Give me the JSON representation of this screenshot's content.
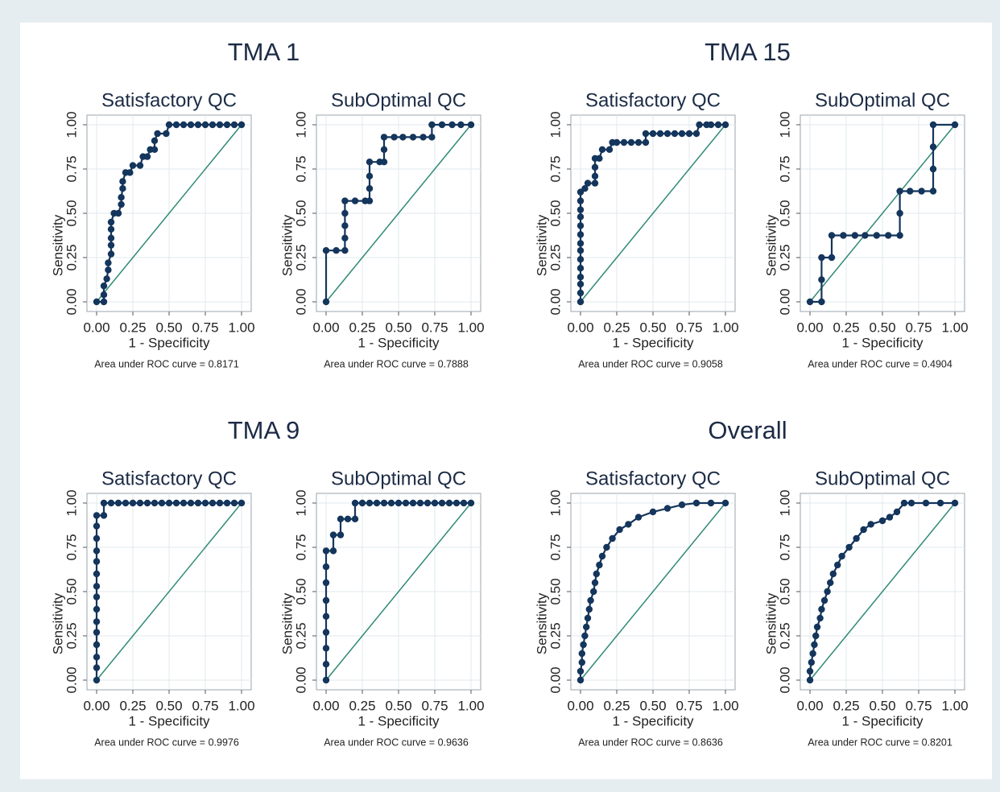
{
  "group_titles": [
    "TMA 1",
    "TMA 15",
    "TMA 9",
    "Overall"
  ],
  "chart_data": [
    {
      "type": "line",
      "title": "Satisfactory QC",
      "xlabel": "1 - Specificity",
      "ylabel": "Sensitivity",
      "note": "Area under ROC curve = 0.8171",
      "x": [
        0,
        0.05,
        0.05,
        0.05,
        0.07,
        0.08,
        0.08,
        0.1,
        0.1,
        0.1,
        0.1,
        0.1,
        0.12,
        0.15,
        0.17,
        0.17,
        0.18,
        0.18,
        0.2,
        0.23,
        0.25,
        0.3,
        0.32,
        0.35,
        0.37,
        0.4,
        0.4,
        0.42,
        0.48,
        0.5,
        0.55,
        0.6,
        0.65,
        0.7,
        0.75,
        0.8,
        0.85,
        0.9,
        0.95,
        1
      ],
      "values": [
        0,
        0,
        0.04,
        0.09,
        0.13,
        0.18,
        0.22,
        0.27,
        0.32,
        0.36,
        0.41,
        0.45,
        0.5,
        0.5,
        0.55,
        0.59,
        0.64,
        0.68,
        0.73,
        0.73,
        0.77,
        0.77,
        0.82,
        0.82,
        0.86,
        0.86,
        0.91,
        0.95,
        0.95,
        1,
        1,
        1,
        1,
        1,
        1,
        1,
        1,
        1,
        1,
        1
      ],
      "color": "#14355c",
      "reference_line": {
        "x": [
          0,
          1
        ],
        "y": [
          0,
          1
        ],
        "color": "#2f8a76"
      },
      "xlim": [
        0,
        1
      ],
      "ylim": [
        0,
        1
      ],
      "grid": true,
      "xticks": [
        {
          "value": 0,
          "label": "0.00"
        },
        0.25,
        {
          "value": 0.5,
          "label": "0.50"
        },
        0.75,
        {
          "value": 1,
          "label": "1.00"
        }
      ],
      "yticks": [
        {
          "value": 0,
          "label": "0.00"
        },
        0.25,
        {
          "value": 0.5,
          "label": "0.50"
        },
        0.75,
        {
          "value": 1,
          "label": "1.00"
        }
      ]
    },
    {
      "type": "line",
      "title": "SubOptimal QC",
      "xlabel": "1 - Specificity",
      "ylabel": "Sensitivity",
      "note": "Area under ROC curve = 0.7888",
      "x": [
        0,
        0,
        0.07,
        0.13,
        0.13,
        0.13,
        0.13,
        0.13,
        0.2,
        0.27,
        0.3,
        0.3,
        0.3,
        0.3,
        0.37,
        0.4,
        0.4,
        0.4,
        0.47,
        0.53,
        0.6,
        0.67,
        0.73,
        0.73,
        0.8,
        0.87,
        0.93,
        1
      ],
      "values": [
        0,
        0.29,
        0.29,
        0.29,
        0.36,
        0.43,
        0.5,
        0.57,
        0.57,
        0.57,
        0.57,
        0.64,
        0.71,
        0.79,
        0.79,
        0.79,
        0.86,
        0.93,
        0.93,
        0.93,
        0.93,
        0.93,
        0.93,
        1,
        1,
        1,
        1,
        1
      ],
      "color": "#14355c",
      "reference_line": {
        "x": [
          0,
          1
        ],
        "y": [
          0,
          1
        ],
        "color": "#2f8a76"
      },
      "xlim": [
        0,
        1
      ],
      "ylim": [
        0,
        1
      ],
      "grid": true,
      "xticks": [
        {
          "value": 0,
          "label": "0.00"
        },
        0.25,
        {
          "value": 0.5,
          "label": "0.50"
        },
        0.75,
        {
          "value": 1,
          "label": "1.00"
        }
      ],
      "yticks": [
        {
          "value": 0,
          "label": "0.00"
        },
        0.25,
        {
          "value": 0.5,
          "label": "0.50"
        },
        0.75,
        {
          "value": 1,
          "label": "1.00"
        }
      ]
    },
    {
      "type": "line",
      "title": "Satisfactory QC",
      "xlabel": "1 - Specificity",
      "ylabel": "Sensitivity",
      "note": "Area under ROC curve = 0.9058",
      "x": [
        0,
        0,
        0,
        0,
        0,
        0,
        0,
        0,
        0,
        0,
        0,
        0,
        0,
        0,
        0.03,
        0.05,
        0.1,
        0.1,
        0.1,
        0.1,
        0.13,
        0.15,
        0.2,
        0.22,
        0.25,
        0.3,
        0.35,
        0.4,
        0.45,
        0.45,
        0.5,
        0.55,
        0.6,
        0.65,
        0.7,
        0.75,
        0.8,
        0.82,
        0.87,
        0.9,
        0.95,
        1
      ],
      "values": [
        0,
        0.05,
        0.1,
        0.14,
        0.19,
        0.24,
        0.29,
        0.33,
        0.38,
        0.43,
        0.48,
        0.52,
        0.57,
        0.62,
        0.64,
        0.67,
        0.67,
        0.71,
        0.76,
        0.81,
        0.81,
        0.86,
        0.86,
        0.9,
        0.9,
        0.9,
        0.9,
        0.9,
        0.9,
        0.95,
        0.95,
        0.95,
        0.95,
        0.95,
        0.95,
        0.95,
        0.95,
        1,
        1,
        1,
        1,
        1
      ],
      "color": "#14355c",
      "reference_line": {
        "x": [
          0,
          1
        ],
        "y": [
          0,
          1
        ],
        "color": "#2f8a76"
      },
      "xlim": [
        0,
        1
      ],
      "ylim": [
        0,
        1
      ],
      "grid": true,
      "xticks": [
        {
          "value": 0,
          "label": "0.00"
        },
        0.25,
        {
          "value": 0.5,
          "label": "0.50"
        },
        0.75,
        {
          "value": 1,
          "label": "1.00"
        }
      ],
      "yticks": [
        {
          "value": 0,
          "label": "0.00"
        },
        0.25,
        {
          "value": 0.5,
          "label": "0.50"
        },
        0.75,
        {
          "value": 1,
          "label": "1.00"
        }
      ]
    },
    {
      "type": "line",
      "title": "SubOptimal QC",
      "xlabel": "1 - Specificity",
      "ylabel": "Sensitivity",
      "note": "Area under ROC curve = 0.4904",
      "x": [
        0,
        0.08,
        0.08,
        0.08,
        0.15,
        0.15,
        0.23,
        0.31,
        0.38,
        0.46,
        0.54,
        0.62,
        0.62,
        0.62,
        0.69,
        0.77,
        0.85,
        0.85,
        0.85,
        0.85,
        1
      ],
      "values": [
        0,
        0,
        0.125,
        0.25,
        0.25,
        0.375,
        0.375,
        0.375,
        0.375,
        0.375,
        0.375,
        0.375,
        0.5,
        0.625,
        0.625,
        0.625,
        0.625,
        0.75,
        0.875,
        1,
        1
      ],
      "color": "#14355c",
      "reference_line": {
        "x": [
          0,
          1
        ],
        "y": [
          0,
          1
        ],
        "color": "#2f8a76"
      },
      "xlim": [
        0,
        1
      ],
      "ylim": [
        0,
        1
      ],
      "grid": true,
      "xticks": [
        {
          "value": 0,
          "label": "0.00"
        },
        0.25,
        {
          "value": 0.5,
          "label": "0.50"
        },
        0.75,
        {
          "value": 1,
          "label": "1.00"
        }
      ],
      "yticks": [
        {
          "value": 0,
          "label": "0.00"
        },
        0.25,
        {
          "value": 0.5,
          "label": "0.50"
        },
        0.75,
        {
          "value": 1,
          "label": "1.00"
        }
      ]
    },
    {
      "type": "line",
      "title": "Satisfactory QC",
      "xlabel": "1 - Specificity",
      "ylabel": "Sensitivity",
      "note": "Area under ROC curve = 0.9976",
      "x": [
        0,
        0,
        0,
        0,
        0,
        0,
        0,
        0,
        0,
        0,
        0,
        0,
        0,
        0,
        0,
        0.05,
        0.05,
        0.1,
        0.15,
        0.2,
        0.25,
        0.3,
        0.35,
        0.4,
        0.45,
        0.5,
        0.55,
        0.6,
        0.65,
        0.7,
        0.75,
        0.8,
        0.85,
        0.9,
        0.95,
        1
      ],
      "values": [
        0,
        0.07,
        0.13,
        0.2,
        0.27,
        0.33,
        0.4,
        0.47,
        0.53,
        0.6,
        0.67,
        0.73,
        0.8,
        0.87,
        0.93,
        0.93,
        1,
        1,
        1,
        1,
        1,
        1,
        1,
        1,
        1,
        1,
        1,
        1,
        1,
        1,
        1,
        1,
        1,
        1,
        1,
        1
      ],
      "color": "#14355c",
      "reference_line": {
        "x": [
          0,
          1
        ],
        "y": [
          0,
          1
        ],
        "color": "#2f8a76"
      },
      "xlim": [
        0,
        1
      ],
      "ylim": [
        0,
        1
      ],
      "grid": true,
      "xticks": [
        {
          "value": 0,
          "label": "0.00"
        },
        0.25,
        {
          "value": 0.5,
          "label": "0.50"
        },
        0.75,
        {
          "value": 1,
          "label": "1.00"
        }
      ],
      "yticks": [
        {
          "value": 0,
          "label": "0.00"
        },
        0.25,
        {
          "value": 0.5,
          "label": "0.50"
        },
        0.75,
        {
          "value": 1,
          "label": "1.00"
        }
      ]
    },
    {
      "type": "line",
      "title": "SubOptimal QC",
      "xlabel": "1 - Specificity",
      "ylabel": "Sensitivity",
      "note": "Area under ROC curve = 0.9636",
      "x": [
        0,
        0,
        0,
        0,
        0,
        0,
        0,
        0,
        0,
        0.05,
        0.05,
        0.1,
        0.1,
        0.15,
        0.2,
        0.2,
        0.25,
        0.3,
        0.35,
        0.4,
        0.45,
        0.5,
        0.55,
        0.6,
        0.65,
        0.7,
        0.75,
        0.8,
        0.85,
        0.9,
        0.95,
        1
      ],
      "values": [
        0,
        0.09,
        0.18,
        0.27,
        0.36,
        0.45,
        0.55,
        0.64,
        0.73,
        0.73,
        0.82,
        0.82,
        0.91,
        0.91,
        0.91,
        1,
        1,
        1,
        1,
        1,
        1,
        1,
        1,
        1,
        1,
        1,
        1,
        1,
        1,
        1,
        1,
        1
      ],
      "color": "#14355c",
      "reference_line": {
        "x": [
          0,
          1
        ],
        "y": [
          0,
          1
        ],
        "color": "#2f8a76"
      },
      "xlim": [
        0,
        1
      ],
      "ylim": [
        0,
        1
      ],
      "grid": true,
      "xticks": [
        {
          "value": 0,
          "label": "0.00"
        },
        0.25,
        {
          "value": 0.5,
          "label": "0.50"
        },
        0.75,
        {
          "value": 1,
          "label": "1.00"
        }
      ],
      "yticks": [
        {
          "value": 0,
          "label": "0.00"
        },
        0.25,
        {
          "value": 0.5,
          "label": "0.50"
        },
        0.75,
        {
          "value": 1,
          "label": "1.00"
        }
      ]
    },
    {
      "type": "line",
      "title": "Satisfactory QC",
      "xlabel": "1 - Specificity",
      "ylabel": "Sensitivity",
      "note": "Area under ROC curve = 0.8636",
      "x": [
        0,
        0,
        0.01,
        0.01,
        0.02,
        0.03,
        0.04,
        0.05,
        0.06,
        0.07,
        0.09,
        0.1,
        0.11,
        0.13,
        0.15,
        0.18,
        0.22,
        0.27,
        0.33,
        0.4,
        0.5,
        0.6,
        0.7,
        0.8,
        0.9,
        1
      ],
      "values": [
        0,
        0.05,
        0.1,
        0.15,
        0.2,
        0.25,
        0.3,
        0.35,
        0.4,
        0.45,
        0.5,
        0.55,
        0.6,
        0.65,
        0.7,
        0.75,
        0.8,
        0.85,
        0.88,
        0.92,
        0.95,
        0.97,
        0.99,
        1,
        1,
        1
      ],
      "color": "#14355c",
      "reference_line": {
        "x": [
          0,
          1
        ],
        "y": [
          0,
          1
        ],
        "color": "#2f8a76"
      },
      "xlim": [
        0,
        1
      ],
      "ylim": [
        0,
        1
      ],
      "grid": true,
      "xticks": [
        {
          "value": 0,
          "label": "0.00"
        },
        0.25,
        {
          "value": 0.5,
          "label": "0.50"
        },
        0.75,
        {
          "value": 1,
          "label": "1.00"
        }
      ],
      "yticks": [
        {
          "value": 0,
          "label": "0.00"
        },
        0.25,
        {
          "value": 0.5,
          "label": "0.50"
        },
        0.75,
        {
          "value": 1,
          "label": "1.00"
        }
      ]
    },
    {
      "type": "line",
      "title": "SubOptimal QC",
      "xlabel": "1 - Specificity",
      "ylabel": "Sensitivity",
      "note": "Area under ROC curve = 0.8201",
      "x": [
        0,
        0,
        0.01,
        0.02,
        0.03,
        0.04,
        0.05,
        0.07,
        0.08,
        0.1,
        0.12,
        0.14,
        0.16,
        0.19,
        0.22,
        0.27,
        0.32,
        0.37,
        0.42,
        0.5,
        0.55,
        0.6,
        0.65,
        0.7,
        0.8,
        0.9,
        1
      ],
      "values": [
        0,
        0.05,
        0.1,
        0.15,
        0.2,
        0.25,
        0.3,
        0.35,
        0.4,
        0.45,
        0.5,
        0.55,
        0.6,
        0.65,
        0.7,
        0.75,
        0.8,
        0.85,
        0.88,
        0.9,
        0.92,
        0.95,
        1,
        1,
        1,
        1,
        1
      ],
      "color": "#14355c",
      "reference_line": {
        "x": [
          0,
          1
        ],
        "y": [
          0,
          1
        ],
        "color": "#2f8a76"
      },
      "xlim": [
        0,
        1
      ],
      "ylim": [
        0,
        1
      ],
      "grid": true,
      "xticks": [
        {
          "value": 0,
          "label": "0.00"
        },
        0.25,
        {
          "value": 0.5,
          "label": "0.50"
        },
        0.75,
        {
          "value": 1,
          "label": "1.00"
        }
      ],
      "yticks": [
        {
          "value": 0,
          "label": "0.00"
        },
        0.25,
        {
          "value": 0.5,
          "label": "0.50"
        },
        0.75,
        {
          "value": 1,
          "label": "1.00"
        }
      ]
    }
  ]
}
